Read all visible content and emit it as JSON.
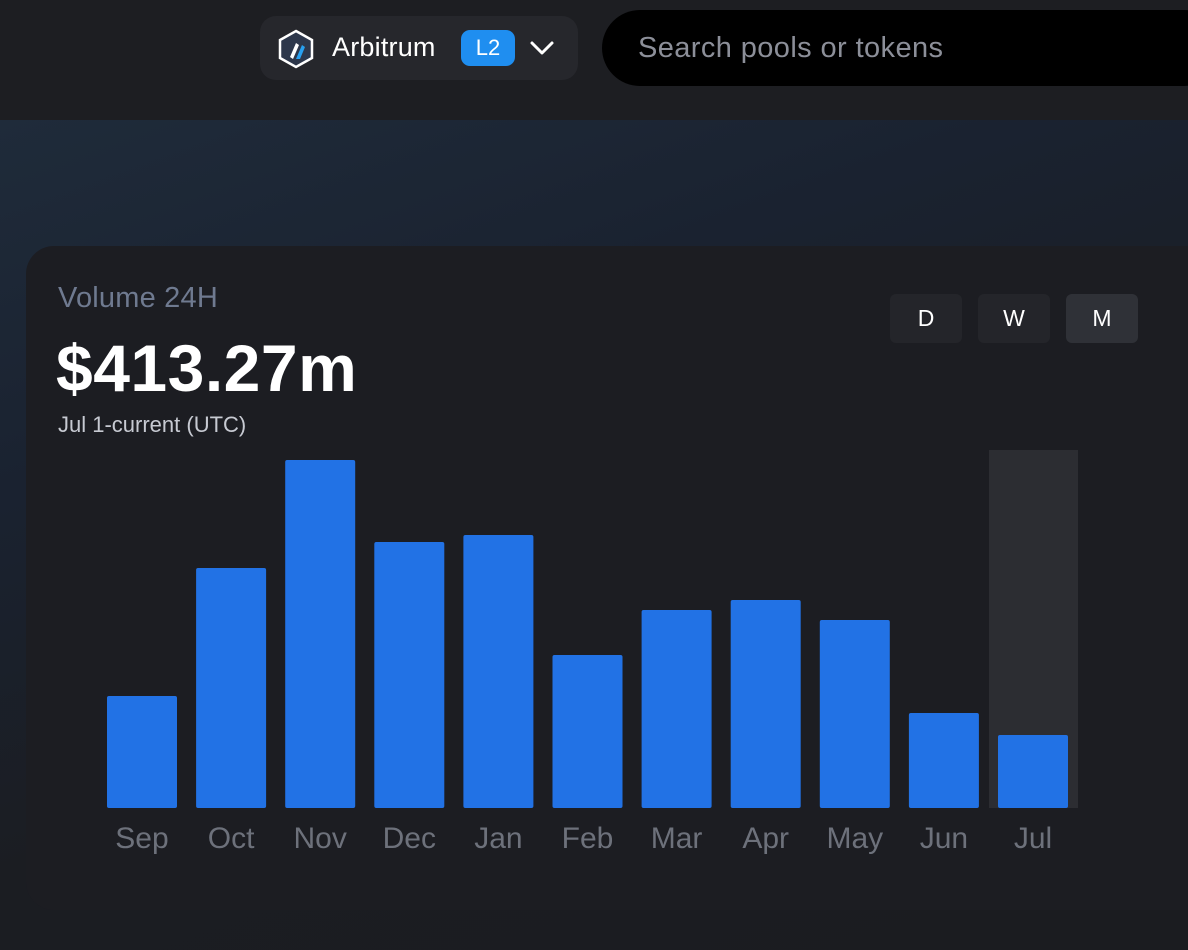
{
  "header": {
    "network": {
      "name": "Arbitrum",
      "layer_badge": "L2",
      "logo_icon": "arbitrum-logo-icon",
      "chevron_icon": "chevron-down-icon"
    },
    "search": {
      "placeholder": "Search pools or tokens",
      "value": ""
    }
  },
  "volume_card": {
    "title": "Volume 24H",
    "value": "$413.27m",
    "subtitle": "Jul 1-current (UTC)",
    "timeframes": [
      {
        "label": "D",
        "active": false
      },
      {
        "label": "W",
        "active": false
      },
      {
        "label": "M",
        "active": true
      }
    ]
  },
  "chart_data": {
    "type": "bar",
    "categories": [
      "Sep",
      "Oct",
      "Nov",
      "Dec",
      "Jan",
      "Feb",
      "Mar",
      "Apr",
      "May",
      "Jun",
      "Jul"
    ],
    "values": [
      112,
      240,
      348,
      266,
      273,
      153,
      198,
      208,
      188,
      95,
      73
    ],
    "highlighted_category": "Jul",
    "ylim": [
      0,
      360
    ],
    "colors": {
      "bar": "#2272e5",
      "highlight_band": "#2c2d32",
      "label": "#6d717b"
    }
  }
}
